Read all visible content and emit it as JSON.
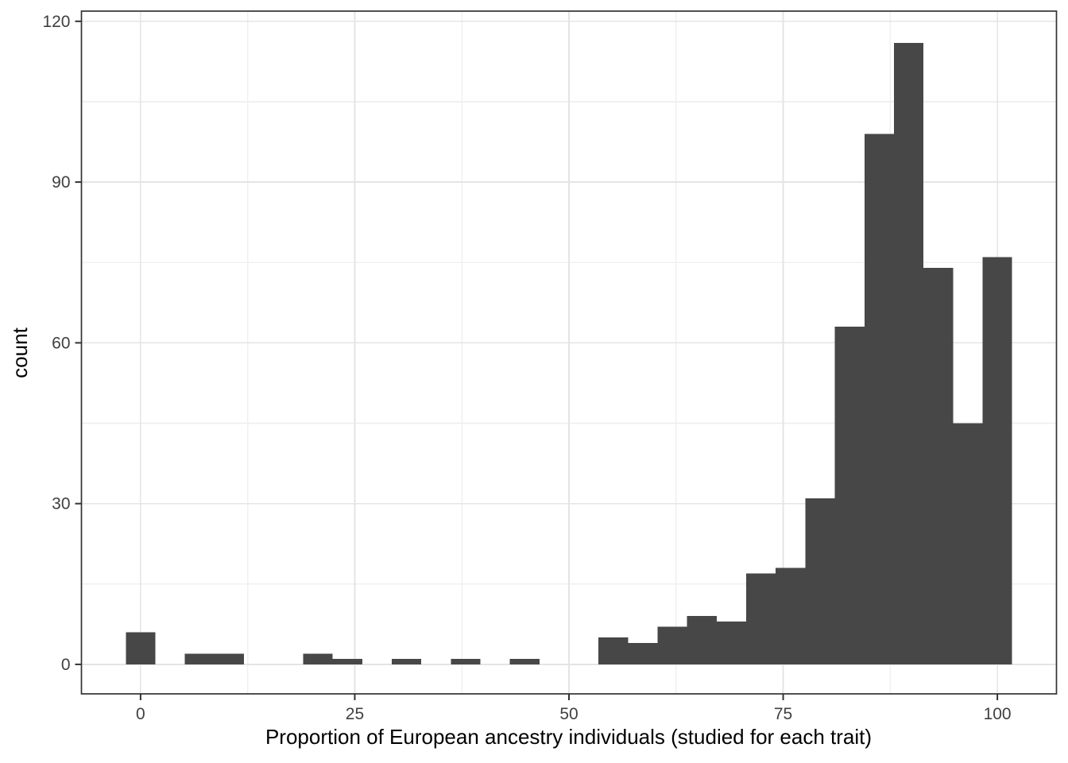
{
  "chart_data": {
    "type": "bar",
    "subtype": "histogram",
    "title": "",
    "xlabel": "Proportion of European ancestry individuals (studied for each trait)",
    "ylabel": "count",
    "bin_width": 3.448,
    "bin_centers": [
      0,
      3.45,
      6.9,
      10.34,
      13.79,
      17.24,
      20.69,
      24.14,
      27.59,
      31.03,
      34.48,
      37.93,
      41.38,
      44.83,
      48.28,
      51.72,
      55.17,
      58.62,
      62.07,
      65.52,
      68.97,
      72.41,
      75.86,
      79.31,
      82.76,
      86.21,
      89.66,
      93.1,
      96.55,
      100
    ],
    "counts": [
      6,
      0,
      2,
      2,
      0,
      0,
      2,
      1,
      0,
      1,
      0,
      1,
      0,
      1,
      0,
      0,
      5,
      4,
      7,
      9,
      8,
      17,
      18,
      31,
      63,
      99,
      116,
      74,
      45,
      76
    ],
    "x_ticks": [
      0,
      25,
      50,
      75,
      100
    ],
    "y_ticks": [
      0,
      30,
      60,
      90,
      120
    ],
    "x_minor_ticks": [
      12.5,
      37.5,
      62.5,
      87.5
    ],
    "y_minor_ticks": [
      15,
      45,
      75,
      105
    ],
    "xlim": [
      -6.9,
      106.9
    ],
    "ylim": [
      -5.5,
      121.9
    ],
    "grid": "on",
    "legend": "none",
    "colors": {
      "bar_fill": "#474747",
      "panel_border": "#333333",
      "grid_major": "#E4E4E4",
      "grid_minor": "#F0F0F0",
      "tick_mark": "#333333",
      "tick_label": "#404040",
      "axis_title": "#000000",
      "background": "#FFFFFF"
    }
  }
}
